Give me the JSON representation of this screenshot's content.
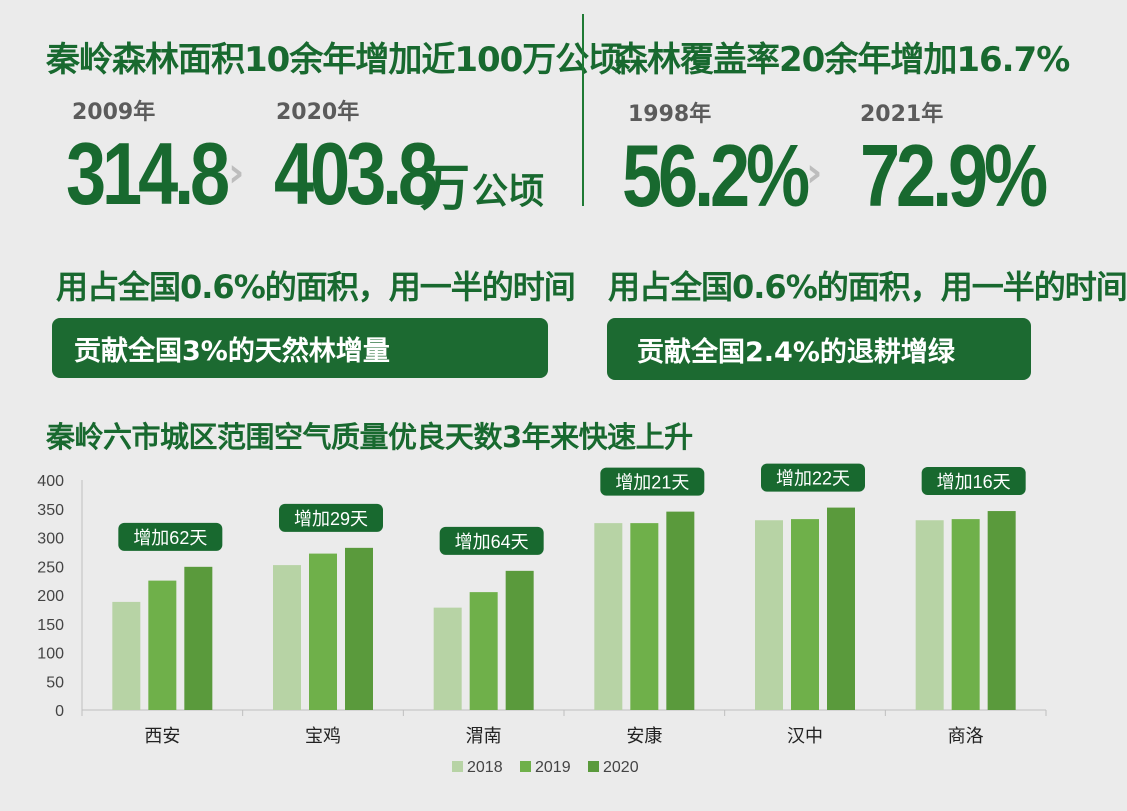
{
  "left_panel": {
    "title": "秦岭森林面积10余年增加近100万公顷",
    "year_from": "2009年",
    "year_to": "2020年",
    "value_from": "314.8",
    "value_to": "403.8",
    "unit_wan": "万",
    "unit_gongqing": "公顷",
    "subtitle": "用占全国0.6%的面积，用一半的时间",
    "pill": "贡献全国3%的天然林增量"
  },
  "right_panel": {
    "title": "森林覆盖率20余年增加16.7%",
    "year_from": "1998年",
    "year_to": "2021年",
    "value_from": "56.2%",
    "value_to": "72.9%",
    "subtitle": "用占全国0.6%的面积，用一半的时间",
    "pill": "贡献全国2.4%的退耕增绿"
  },
  "icons": {
    "arrow": "chevron-right-icon"
  },
  "colors": {
    "dark_green": "#18692f",
    "series_2018": "#b7d3a5",
    "series_2019": "#6fb04a",
    "series_2020": "#5a9a3c",
    "background": "#ebebeb"
  },
  "chart_data": {
    "type": "bar",
    "title": "秦岭六市城区范围空气质量优良天数3年来快速上升",
    "categories": [
      "西安",
      "宝鸡",
      "渭南",
      "安康",
      "汉中",
      "商洛"
    ],
    "series": [
      {
        "name": "2018",
        "values": [
          188,
          252,
          178,
          325,
          330,
          330
        ]
      },
      {
        "name": "2019",
        "values": [
          225,
          272,
          205,
          325,
          332,
          332
        ]
      },
      {
        "name": "2020",
        "values": [
          249,
          282,
          242,
          345,
          352,
          346
        ]
      }
    ],
    "annotations": [
      "增加62天",
      "增加29天",
      "增加64天",
      "增加21天",
      "增加22天",
      "增加16天"
    ],
    "ylim": [
      0,
      400
    ],
    "yticks": [
      0,
      50,
      100,
      150,
      200,
      250,
      300,
      350,
      400
    ],
    "legend_position": "bottom-center",
    "grid": false
  }
}
